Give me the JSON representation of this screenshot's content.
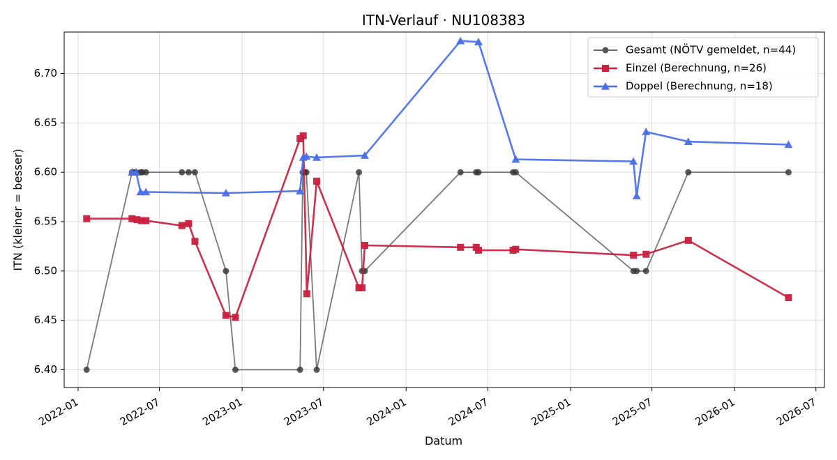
{
  "chart_data": {
    "type": "line",
    "title": "ITN-Verlauf · NU108383",
    "xlabel": "Datum",
    "ylabel": "ITN  (kleiner = besser)",
    "x_type": "date",
    "xlim": [
      "2021-12-01",
      "2026-07-20"
    ],
    "ylim": [
      6.382,
      6.742
    ],
    "x_ticks": [
      "2022-01-01",
      "2022-07-01",
      "2023-01-01",
      "2023-07-01",
      "2024-01-01",
      "2024-07-01",
      "2025-01-01",
      "2025-07-01",
      "2026-01-01",
      "2026-07-01"
    ],
    "x_tick_labels": [
      "2022-01",
      "2022-07",
      "2023-01",
      "2023-07",
      "2024-01",
      "2024-07",
      "2025-01",
      "2025-07",
      "2026-01",
      "2026-07"
    ],
    "y_ticks": [
      6.4,
      6.45,
      6.5,
      6.55,
      6.6,
      6.65,
      6.7
    ],
    "y_tick_labels": [
      "6.40",
      "6.45",
      "6.50",
      "6.55",
      "6.60",
      "6.65",
      "6.70"
    ],
    "grid": true,
    "legend_position": "top-right",
    "series": [
      {
        "name": "Gesamt (NÖTV gemeldet, n=44)",
        "color": "#555555",
        "marker": "circle",
        "points": [
          [
            "2022-01-20",
            6.4
          ],
          [
            "2022-05-01",
            6.6
          ],
          [
            "2022-05-05",
            6.6
          ],
          [
            "2022-05-10",
            6.6
          ],
          [
            "2022-05-20",
            6.6
          ],
          [
            "2022-05-24",
            6.6
          ],
          [
            "2022-06-01",
            6.6
          ],
          [
            "2022-08-20",
            6.6
          ],
          [
            "2022-09-04",
            6.6
          ],
          [
            "2022-09-18",
            6.6
          ],
          [
            "2022-11-26",
            6.5
          ],
          [
            "2022-12-17",
            6.4
          ],
          [
            "2023-05-10",
            6.4
          ],
          [
            "2023-05-16",
            6.6
          ],
          [
            "2023-05-20",
            6.6
          ],
          [
            "2023-05-24",
            6.6
          ],
          [
            "2023-06-16",
            6.4
          ],
          [
            "2023-09-18",
            6.6
          ],
          [
            "2023-09-25",
            6.5
          ],
          [
            "2023-10-01",
            6.5
          ],
          [
            "2024-05-01",
            6.6
          ],
          [
            "2024-06-05",
            6.6
          ],
          [
            "2024-06-10",
            6.6
          ],
          [
            "2024-08-26",
            6.6
          ],
          [
            "2024-09-01",
            6.6
          ],
          [
            "2025-05-21",
            6.5
          ],
          [
            "2025-05-28",
            6.5
          ],
          [
            "2025-06-18",
            6.5
          ],
          [
            "2025-09-20",
            6.6
          ],
          [
            "2026-05-01",
            6.6
          ]
        ]
      },
      {
        "name": "Einzel (Berechnung, n=26)",
        "color": "#c8203e",
        "marker": "square",
        "points": [
          [
            "2022-01-20",
            6.553
          ],
          [
            "2022-05-01",
            6.553
          ],
          [
            "2022-05-12",
            6.552
          ],
          [
            "2022-05-22",
            6.551
          ],
          [
            "2022-06-01",
            6.551
          ],
          [
            "2022-08-20",
            6.546
          ],
          [
            "2022-09-04",
            6.548
          ],
          [
            "2022-09-18",
            6.53
          ],
          [
            "2022-11-26",
            6.455
          ],
          [
            "2022-12-17",
            6.453
          ],
          [
            "2023-05-10",
            6.634
          ],
          [
            "2023-05-17",
            6.637
          ],
          [
            "2023-05-25",
            6.477
          ],
          [
            "2023-06-16",
            6.591
          ],
          [
            "2023-09-18",
            6.483
          ],
          [
            "2023-09-25",
            6.483
          ],
          [
            "2023-10-01",
            6.526
          ],
          [
            "2024-05-01",
            6.524
          ],
          [
            "2024-06-05",
            6.524
          ],
          [
            "2024-06-10",
            6.521
          ],
          [
            "2024-08-26",
            6.521
          ],
          [
            "2024-09-01",
            6.522
          ],
          [
            "2025-05-21",
            6.516
          ],
          [
            "2025-06-18",
            6.517
          ],
          [
            "2025-09-20",
            6.531
          ],
          [
            "2026-05-01",
            6.473
          ]
        ]
      },
      {
        "name": "Doppel (Berechnung, n=18)",
        "color": "#4a6ee8",
        "marker": "triangle",
        "points": [
          [
            "2022-05-01",
            6.6
          ],
          [
            "2022-05-10",
            6.6
          ],
          [
            "2022-05-20",
            6.58
          ],
          [
            "2022-06-01",
            6.58
          ],
          [
            "2022-11-26",
            6.579
          ],
          [
            "2023-05-10",
            6.581
          ],
          [
            "2023-05-17",
            6.615
          ],
          [
            "2023-05-24",
            6.616
          ],
          [
            "2023-06-16",
            6.615
          ],
          [
            "2023-10-01",
            6.617
          ],
          [
            "2024-05-01",
            6.733
          ],
          [
            "2024-06-10",
            6.732
          ],
          [
            "2024-09-01",
            6.613
          ],
          [
            "2025-05-21",
            6.611
          ],
          [
            "2025-05-28",
            6.576
          ],
          [
            "2025-06-18",
            6.641
          ],
          [
            "2025-09-20",
            6.631
          ],
          [
            "2026-05-01",
            6.628
          ]
        ]
      }
    ]
  }
}
